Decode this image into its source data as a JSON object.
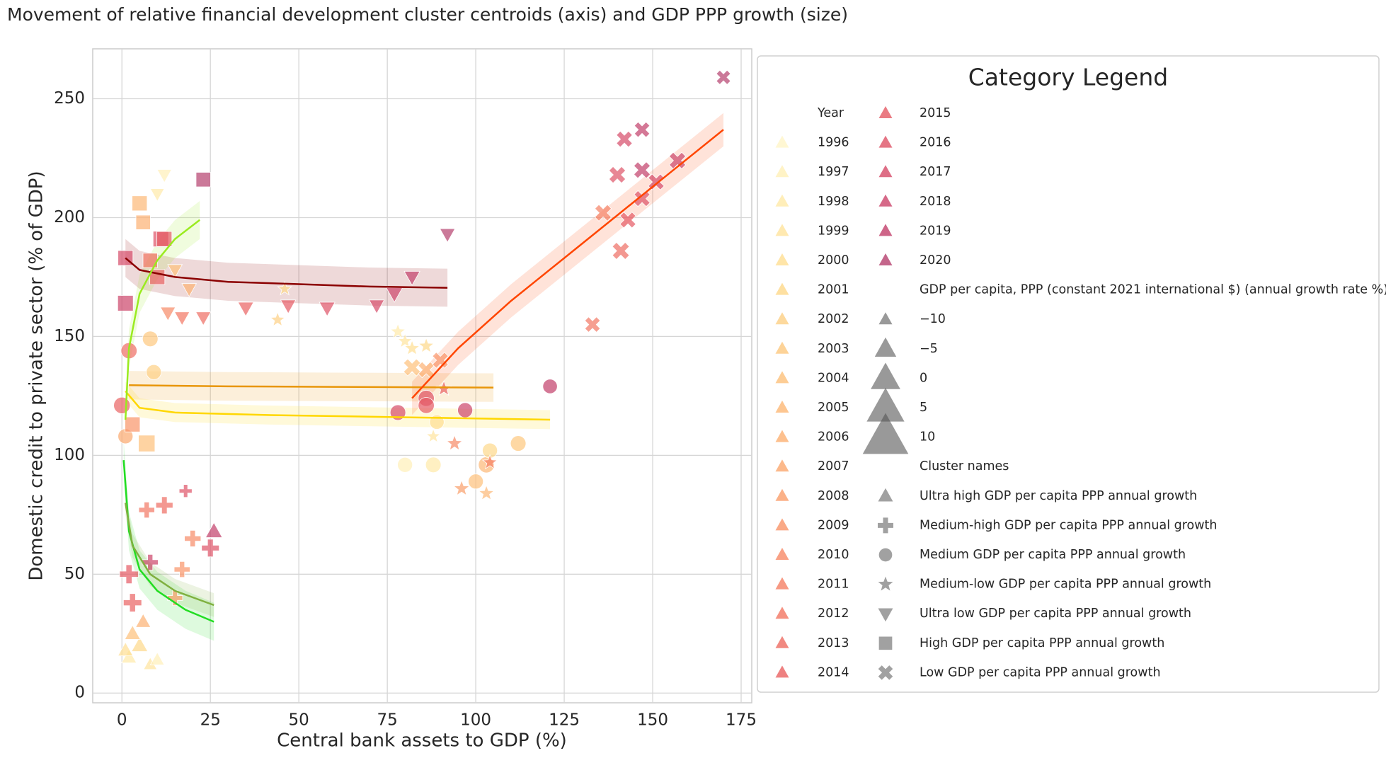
{
  "chart_data": {
    "type": "scatter",
    "title": "Movement of relative financial development cluster centroids (axis) and GDP PPP growth (size)",
    "x_label": "Central bank assets to GDP (%)",
    "y_label": "Domestic credit to private sector (% of GDP)",
    "xlim": [
      -8.25,
      178
    ],
    "ylim": [
      -4.1,
      271
    ],
    "xticks": [
      0,
      25,
      50,
      75,
      100,
      125,
      150,
      175
    ],
    "yticks": [
      0,
      50,
      100,
      150,
      200,
      250
    ],
    "grid": true,
    "legend_title": "Category Legend",
    "year_title": "Year",
    "years": [
      1996,
      1997,
      1998,
      1999,
      2000,
      2001,
      2002,
      2003,
      2004,
      2005,
      2006,
      2007,
      2008,
      2009,
      2010,
      2011,
      2012,
      2013,
      2014,
      2015,
      2016,
      2017,
      2018,
      2019,
      2020
    ],
    "year_colors": [
      "#fff5c8",
      "#fff0b8",
      "#ffeaa8",
      "#ffe49c",
      "#ffde92",
      "#fed88a",
      "#fdd084",
      "#fdc87e",
      "#fdc07a",
      "#fcb876",
      "#fcb072",
      "#fba86e",
      "#fa9e6a",
      "#f99468",
      "#f78a66",
      "#f58064",
      "#f27662",
      "#ee6c62",
      "#ea6262",
      "#e55a64",
      "#de5266",
      "#d64a68",
      "#cc446a",
      "#c23e6a",
      "#b5406e"
    ],
    "size_title": "GDP per capita, PPP (constant 2021 international $) (annual growth rate %)",
    "size_legend": [
      {
        "value": -10,
        "label": "−10"
      },
      {
        "value": -5,
        "label": "−5"
      },
      0,
      5,
      10
    ],
    "cluster_title": "Cluster names",
    "series": [
      {
        "name": "Ultra high GDP per capita PPP annual growth",
        "marker": "triangle",
        "x": [
          2,
          5,
          8,
          3,
          6,
          26,
          10,
          1
        ],
        "y": [
          15,
          20,
          12,
          25,
          30,
          68,
          14,
          18
        ],
        "growth": [
          0,
          2,
          -3,
          1,
          0,
          3,
          -2,
          0
        ],
        "years": [
          1998,
          2001,
          1999,
          2004,
          2006,
          2019,
          1997,
          2000
        ]
      },
      {
        "name": "Medium-high GDP per capita PPP annual growth",
        "marker": "plus",
        "x": [
          18,
          12,
          3,
          7,
          20,
          25,
          17,
          2,
          15,
          8
        ],
        "y": [
          85,
          79,
          38,
          77,
          65,
          61,
          52,
          50,
          40,
          55
        ],
        "growth": [
          -5,
          2,
          4,
          0,
          1,
          3,
          0,
          5,
          -1,
          0
        ],
        "years": [
          2016,
          2013,
          2014,
          2012,
          2010,
          2016,
          2009,
          2015,
          2008,
          2018
        ]
      },
      {
        "name": "Medium GDP per capita PPP annual growth",
        "marker": "circle",
        "x": [
          0,
          2,
          8,
          9,
          78,
          86,
          86,
          97,
          121,
          80,
          88,
          100,
          103,
          112,
          104,
          89,
          1
        ],
        "y": [
          121,
          144,
          149,
          135,
          118,
          124,
          121,
          119,
          129,
          96,
          96,
          89,
          96,
          105,
          102,
          114,
          108
        ],
        "growth": [
          6,
          5,
          4,
          3,
          4,
          5,
          5,
          3,
          2,
          3,
          4,
          3,
          5,
          4,
          3,
          2,
          3
        ],
        "years": [
          2014,
          2013,
          2003,
          2002,
          2017,
          2016,
          2015,
          2018,
          2019,
          1997,
          1998,
          2004,
          2005,
          2003,
          2001,
          2000,
          2007
        ]
      },
      {
        "name": "Medium-low GDP per capita PPP annual growth",
        "marker": "star",
        "x": [
          78,
          80,
          82,
          86,
          91,
          94,
          96,
          103,
          104,
          88,
          44,
          46
        ],
        "y": [
          152,
          148,
          145,
          146,
          128,
          105,
          86,
          84,
          97,
          108,
          157,
          170
        ],
        "growth": [
          0,
          -1,
          0,
          0,
          0,
          1,
          1,
          0,
          -1,
          -2,
          -1,
          -2
        ],
        "years": [
          1998,
          1999,
          2000,
          2001,
          2014,
          2010,
          2008,
          2005,
          2011,
          1999,
          2002,
          2001
        ]
      },
      {
        "name": "Ultra low GDP per capita PPP annual growth",
        "marker": "triangle-down",
        "x": [
          12,
          10,
          15,
          13,
          17,
          23,
          35,
          47,
          58,
          72,
          77,
          82,
          92,
          19
        ],
        "y": [
          218,
          210,
          178,
          160,
          158,
          158,
          162,
          163,
          162,
          163,
          168,
          175,
          193,
          170
        ],
        "growth": [
          -1,
          -2,
          -1,
          0,
          0,
          0,
          1,
          0,
          1,
          0,
          2,
          1,
          0,
          -1
        ],
        "years": [
          1997,
          1998,
          2004,
          2010,
          2012,
          2013,
          2014,
          2015,
          2016,
          2017,
          2018,
          2019,
          2020,
          2006
        ]
      },
      {
        "name": "High GDP per capita PPP annual growth",
        "marker": "square",
        "x": [
          23,
          5,
          6,
          11,
          1,
          8,
          10,
          1,
          7,
          3,
          12
        ],
        "y": [
          216,
          206,
          198,
          191,
          183,
          182,
          175,
          164,
          105,
          113,
          191
        ],
        "growth": [
          2,
          3,
          2,
          4,
          3,
          2,
          3,
          4,
          6,
          3,
          3
        ],
        "years": [
          2020,
          2005,
          2006,
          2016,
          2017,
          2012,
          2014,
          2018,
          2004,
          2009,
          2015
        ]
      },
      {
        "name": "Low GDP per capita PPP annual growth",
        "marker": "x",
        "x": [
          170,
          147,
          142,
          140,
          147,
          157,
          151,
          147,
          143,
          136,
          141,
          133,
          82,
          86,
          90
        ],
        "y": [
          259,
          237,
          233,
          218,
          220,
          224,
          215,
          208,
          199,
          202,
          186,
          155,
          137,
          136,
          140
        ],
        "growth": [
          -1,
          1,
          2,
          3,
          3,
          3,
          2,
          2,
          2,
          3,
          4,
          1,
          4,
          2,
          2
        ],
        "years": [
          2020,
          2019,
          2017,
          2016,
          2019,
          2018,
          2017,
          2016,
          2015,
          2011,
          2013,
          2012,
          2004,
          2006,
          2009
        ]
      }
    ],
    "trend_lines": [
      {
        "color": "#8b0000",
        "band": 8,
        "x": [
          1,
          5,
          15,
          30,
          50,
          70,
          92
        ],
        "y": [
          183,
          178,
          175,
          173,
          172,
          171,
          170.5
        ]
      },
      {
        "color": "#e8960a",
        "band": 6,
        "x": [
          2,
          30,
          60,
          105
        ],
        "y": [
          129.5,
          129,
          128.8,
          128.5
        ]
      },
      {
        "color": "#ffd700",
        "band": 4,
        "x": [
          1,
          5,
          15,
          40,
          80,
          121
        ],
        "y": [
          127,
          120,
          118,
          117,
          116,
          115
        ]
      },
      {
        "color": "#ff4500",
        "band": 7,
        "x": [
          82,
          95,
          110,
          125,
          140,
          155,
          170
        ],
        "y": [
          124,
          145,
          165,
          183,
          201,
          219,
          237
        ]
      },
      {
        "color": "#9aeb1f",
        "band": 8,
        "x": [
          1,
          2,
          5,
          10,
          15,
          22
        ],
        "y": [
          115,
          145,
          168,
          182,
          191,
          199
        ]
      },
      {
        "color": "#22dd22",
        "band": 8,
        "x": [
          0.5,
          2,
          5,
          10,
          18,
          26
        ],
        "y": [
          98,
          68,
          52,
          43,
          35,
          30
        ]
      },
      {
        "color": "#7fb03f",
        "band": 5,
        "x": [
          1,
          3,
          8,
          15,
          26
        ],
        "y": [
          80,
          62,
          50,
          43,
          37
        ]
      }
    ]
  }
}
